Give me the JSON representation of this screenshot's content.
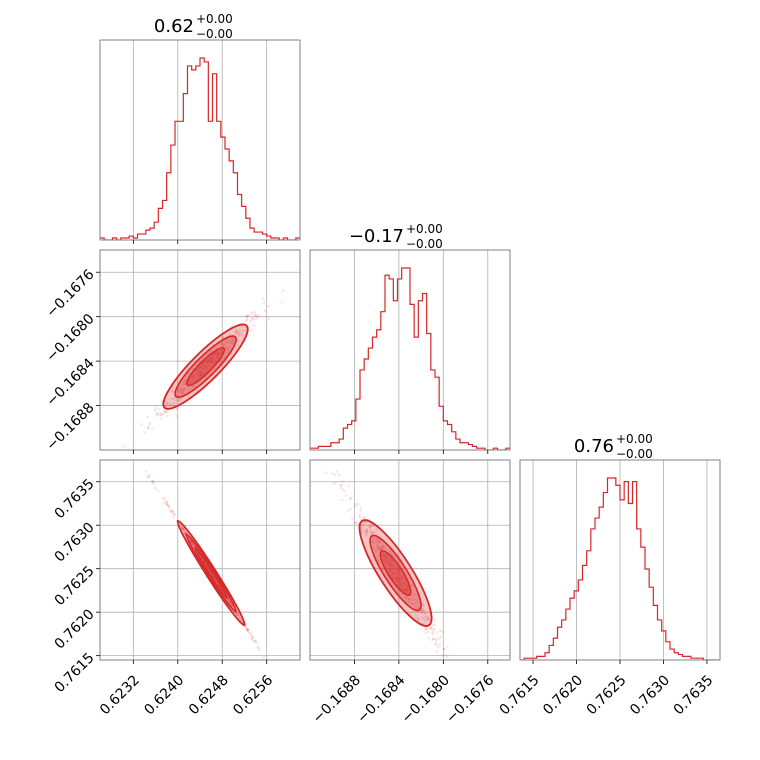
{
  "colors": {
    "series": "#d62728",
    "grid": "#b0b0b0",
    "axes": "#808080"
  },
  "chart_data": [
    {
      "type": "histogram",
      "id": "p00",
      "grid": true,
      "title": {
        "main": "0.62",
        "sup": "+0.00",
        "sub": "−0.00"
      },
      "xlim": [
        0.6226,
        0.6262
      ],
      "xticks": [
        0.6232,
        0.624,
        0.6248,
        0.6256
      ],
      "xtick_labels": [],
      "bin_edges_range": [
        0.6226,
        0.6262
      ],
      "counts": [
        1,
        0,
        0,
        1,
        0,
        1,
        1,
        2,
        1,
        3,
        3,
        5,
        6,
        9,
        16,
        20,
        34,
        48,
        60,
        60,
        74,
        88,
        86,
        88,
        92,
        90,
        60,
        84,
        60,
        52,
        46,
        40,
        34,
        23,
        17,
        11,
        6,
        4,
        4,
        3,
        2,
        1,
        1,
        0,
        1,
        0,
        0,
        1
      ]
    },
    {
      "type": "scatter-contour",
      "id": "p10",
      "grid": true,
      "xlim": [
        0.6226,
        0.6262
      ],
      "ylim": [
        -0.1692,
        -0.1674
      ],
      "xticks": [
        0.6232,
        0.624,
        0.6248,
        0.6256
      ],
      "yticks": [
        -0.1676,
        -0.168,
        -0.1684,
        -0.1688
      ],
      "xtick_labels": [],
      "ytick_labels": [
        "−0.1676",
        "−0.1680",
        "−0.1684",
        "−0.1688"
      ],
      "relation": {
        "x_center": 0.6245,
        "y_center": -0.16845,
        "slope": 0.5
      }
    },
    {
      "type": "histogram",
      "id": "p11",
      "grid": true,
      "title": {
        "main": "−0.17",
        "sup": "+0.00",
        "sub": "−0.00"
      },
      "xlim": [
        -0.1692,
        -0.1674
      ],
      "xticks": [
        -0.1688,
        -0.1684,
        -0.168,
        -0.1676
      ],
      "xtick_labels": [],
      "counts": [
        1,
        1,
        2,
        2,
        2,
        4,
        4,
        6,
        12,
        14,
        16,
        28,
        44,
        50,
        56,
        62,
        66,
        76,
        96,
        94,
        82,
        94,
        100,
        100,
        80,
        62,
        82,
        86,
        64,
        44,
        40,
        24,
        16,
        14,
        10,
        6,
        4,
        4,
        3,
        2,
        1,
        1,
        0,
        0,
        1,
        0,
        0,
        1
      ]
    },
    {
      "type": "scatter-contour",
      "id": "p20",
      "grid": true,
      "xlim": [
        0.6226,
        0.6262
      ],
      "ylim": [
        0.76145,
        0.76375
      ],
      "xticks": [
        0.6232,
        0.624,
        0.6248,
        0.6256
      ],
      "yticks": [
        0.7615,
        0.762,
        0.7625,
        0.763,
        0.7635
      ],
      "xtick_labels": [
        "0.6232",
        "0.6240",
        "0.6248",
        "0.6256"
      ],
      "ytick_labels": [
        "0.7615",
        "0.7620",
        "0.7625",
        "0.7630",
        "0.7635"
      ],
      "relation": {
        "x_center": 0.6246,
        "y_center": 0.76245,
        "slope": -1.0
      }
    },
    {
      "type": "scatter-contour",
      "id": "p21",
      "grid": true,
      "xlim": [
        -0.1692,
        -0.1674
      ],
      "ylim": [
        0.76145,
        0.76375
      ],
      "xticks": [
        -0.1688,
        -0.1684,
        -0.168,
        -0.1676
      ],
      "yticks": [
        0.7615,
        0.762,
        0.7625,
        0.763,
        0.7635
      ],
      "xtick_labels": [
        "−0.1688",
        "−0.1684",
        "−0.1680",
        "−0.1676"
      ],
      "ytick_labels": [],
      "relation": {
        "x_center": -0.16843,
        "y_center": 0.76245,
        "slope": -2.0
      }
    },
    {
      "type": "histogram",
      "id": "p22",
      "grid": true,
      "title": {
        "main": "0.76",
        "sup": "+0.00",
        "sub": "−0.00"
      },
      "xlim": [
        0.76135,
        0.76365
      ],
      "xticks": [
        0.7615,
        0.762,
        0.7625,
        0.763,
        0.7635
      ],
      "xtick_labels": [
        "0.7615",
        "0.7620",
        "0.7625",
        "0.7630",
        "0.7635"
      ],
      "counts": [
        0,
        1,
        1,
        1,
        2,
        2,
        4,
        8,
        12,
        18,
        22,
        28,
        34,
        38,
        44,
        52,
        60,
        72,
        78,
        84,
        92,
        100,
        100,
        96,
        88,
        98,
        86,
        98,
        72,
        62,
        50,
        40,
        30,
        22,
        16,
        10,
        6,
        4,
        3,
        2,
        2,
        1,
        1,
        1,
        0,
        0,
        0,
        0
      ]
    }
  ]
}
